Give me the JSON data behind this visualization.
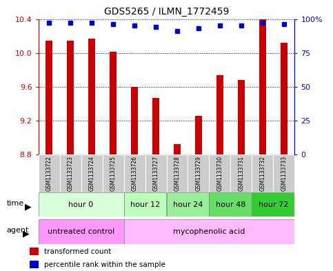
{
  "title": "GDS5265 / ILMN_1772459",
  "samples": [
    "GSM1133722",
    "GSM1133723",
    "GSM1133724",
    "GSM1133725",
    "GSM1133726",
    "GSM1133727",
    "GSM1133728",
    "GSM1133729",
    "GSM1133730",
    "GSM1133731",
    "GSM1133732",
    "GSM1133733"
  ],
  "bar_values": [
    10.14,
    10.14,
    10.17,
    10.01,
    9.6,
    9.47,
    8.92,
    9.26,
    9.74,
    9.68,
    10.4,
    10.12
  ],
  "bar_bottom": 8.8,
  "percentile_values": [
    97,
    97,
    97,
    96,
    95,
    94,
    91,
    93,
    95,
    95,
    97,
    96
  ],
  "ylim_left": [
    8.8,
    10.4
  ],
  "ylim_right": [
    0,
    100
  ],
  "yticks_left": [
    8.8,
    9.2,
    9.6,
    10.0,
    10.4
  ],
  "yticks_right": [
    0,
    25,
    50,
    75,
    100
  ],
  "bar_color": "#cc0000",
  "dot_color": "#0000cc",
  "background_color": "#ffffff",
  "time_groups": [
    {
      "label": "hour 0",
      "start": 0,
      "end": 4,
      "color": "#d9ffd9"
    },
    {
      "label": "hour 12",
      "start": 4,
      "end": 6,
      "color": "#bbffbb"
    },
    {
      "label": "hour 24",
      "start": 6,
      "end": 8,
      "color": "#99ee99"
    },
    {
      "label": "hour 48",
      "start": 8,
      "end": 10,
      "color": "#66dd66"
    },
    {
      "label": "hour 72",
      "start": 10,
      "end": 12,
      "color": "#33cc33"
    }
  ],
  "agent_groups": [
    {
      "label": "untreated control",
      "start": 0,
      "end": 4,
      "color": "#ff99ff"
    },
    {
      "label": "mycophenolic acid",
      "start": 4,
      "end": 12,
      "color": "#ffbbff"
    }
  ],
  "legend_bar_label": "transformed count",
  "legend_dot_label": "percentile rank within the sample",
  "xlabel_time": "time",
  "xlabel_agent": "agent"
}
